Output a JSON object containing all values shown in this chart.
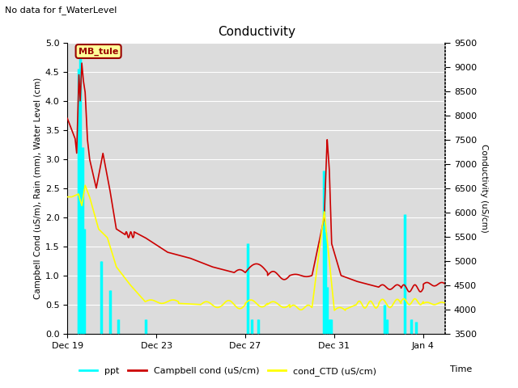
{
  "title": "Conductivity",
  "top_left_text": "No data for f_WaterLevel",
  "xlabel": "Time",
  "ylabel_left": "Campbell Cond (uS/m), Rain (mm), Water Level (cm)",
  "ylabel_right": "Conductivity (uS/cm)",
  "ylim_left": [
    0.0,
    5.0
  ],
  "ylim_right": [
    3500,
    9500
  ],
  "site_label": "MB_tule",
  "bg_color": "#dcdcdc",
  "legend_labels": [
    "ppt",
    "Campbell cond (uS/cm)",
    "cond_CTD (uS/cm)"
  ],
  "legend_colors": [
    "#00ffff",
    "#cc0000",
    "#ffff00"
  ],
  "xtick_labels": [
    "Dec 19",
    "Dec 23",
    "Dec 27",
    "Dec 31",
    "Jan 4"
  ],
  "xtick_positions": [
    0,
    4,
    8,
    12,
    16
  ],
  "right_yticks": [
    3500,
    4000,
    4500,
    5000,
    5500,
    6000,
    6500,
    7000,
    7500,
    8000,
    8500,
    9000,
    9500
  ],
  "left_yticks": [
    0.0,
    0.5,
    1.0,
    1.5,
    2.0,
    2.5,
    3.0,
    3.5,
    4.0,
    4.5,
    5.0
  ],
  "xlim": [
    0,
    17
  ]
}
